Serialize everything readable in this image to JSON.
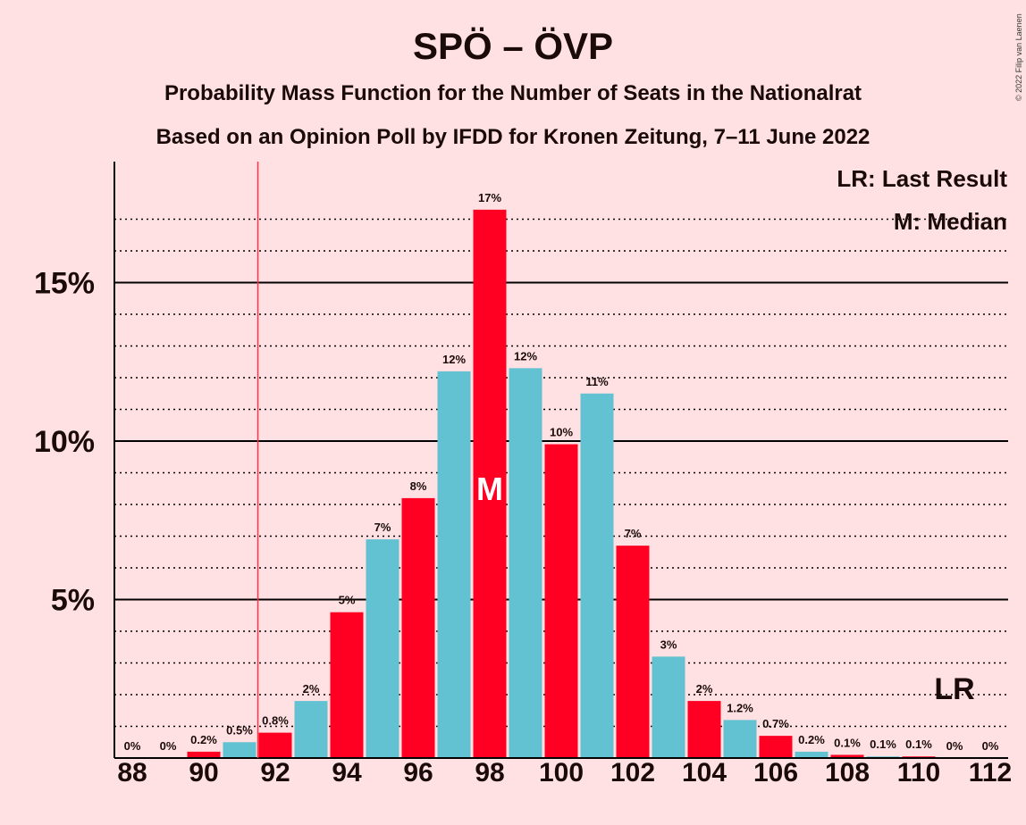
{
  "title": "SPÖ – ÖVP",
  "subtitle1": "Probability Mass Function for the Number of Seats in the Nationalrat",
  "subtitle2": "Based on an Opinion Poll by IFDD for Kronen Zeitung, 7–11 June 2022",
  "copyright": "© 2022 Filip van Laenen",
  "legend": {
    "lr": "LR: Last Result",
    "m": "M: Median"
  },
  "markers": {
    "median_label": "M",
    "lr_label": "LR"
  },
  "colors": {
    "background": "#ffe1e3",
    "red": "#ff0022",
    "teal": "#62c2d2",
    "axis": "#000000",
    "lr_line": "#ff3344"
  },
  "chart_data": {
    "type": "bar",
    "x": [
      88,
      89,
      90,
      91,
      92,
      93,
      94,
      95,
      96,
      97,
      98,
      99,
      100,
      101,
      102,
      103,
      104,
      105,
      106,
      107,
      108,
      109,
      110,
      111,
      112
    ],
    "values": [
      0,
      0,
      0.2,
      0.5,
      0.8,
      1.8,
      4.6,
      6.9,
      8.2,
      12.2,
      17.3,
      12.3,
      9.9,
      11.5,
      6.7,
      3.2,
      1.8,
      1.2,
      0.7,
      0.2,
      0.1,
      0.05,
      0.05,
      0,
      0
    ],
    "labels": [
      "0%",
      "0%",
      "0.2%",
      "0.5%",
      "0.8%",
      "2%",
      "5%",
      "7%",
      "8%",
      "12%",
      "17%",
      "12%",
      "10%",
      "11%",
      "7%",
      "3%",
      "2%",
      "1.2%",
      "0.7%",
      "0.2%",
      "0.1%",
      "0.1%",
      "0.1%",
      "0%",
      "0%"
    ],
    "xticks": [
      "88",
      "90",
      "92",
      "94",
      "96",
      "98",
      "100",
      "102",
      "104",
      "106",
      "108",
      "110",
      "112"
    ],
    "yticks": [
      "5%",
      "10%",
      "15%"
    ],
    "ylim": [
      0,
      18.8
    ],
    "median": 98,
    "last_result": 91.5
  }
}
